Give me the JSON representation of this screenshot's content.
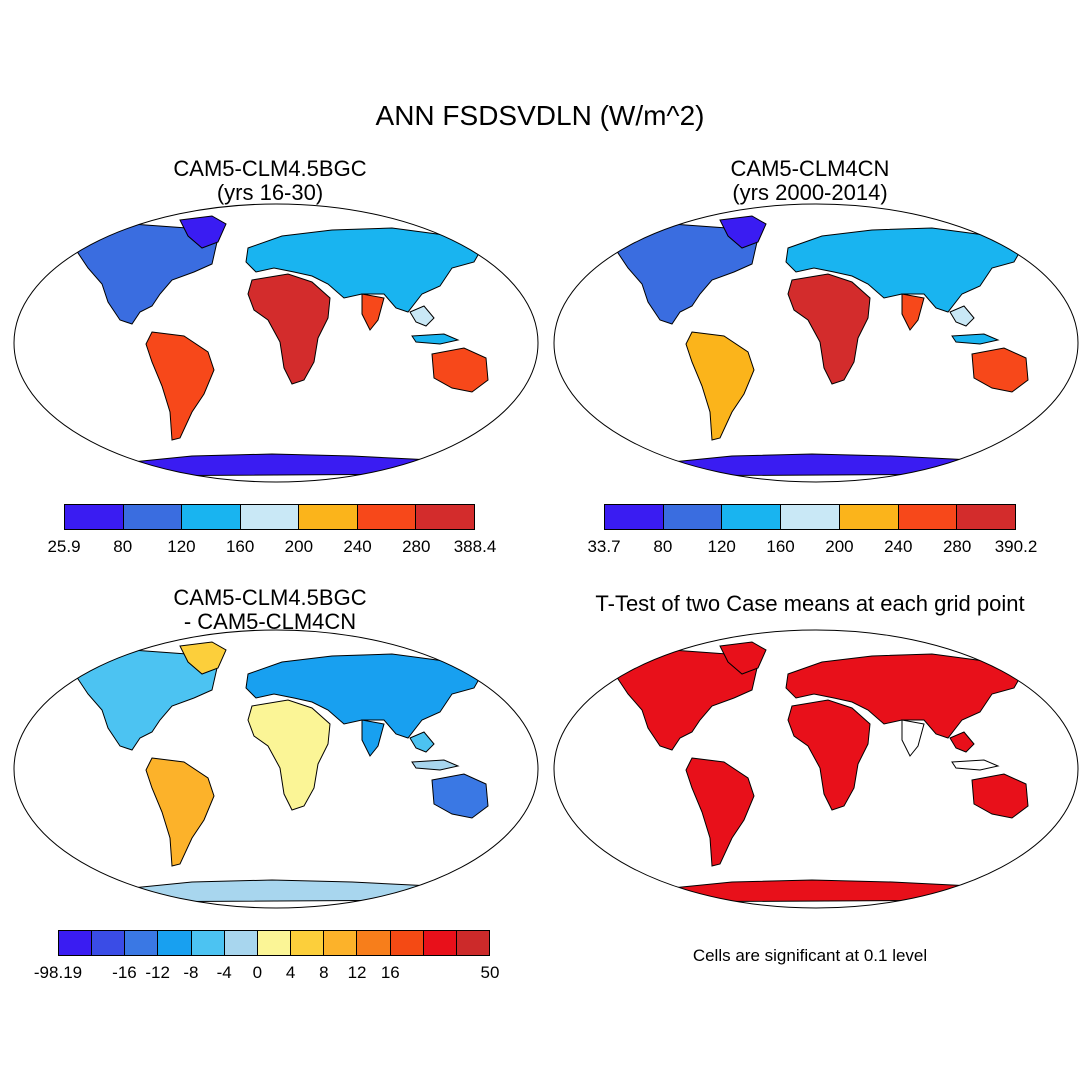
{
  "figure": {
    "title": "ANN FSDSVDLN (W/m^2)",
    "panels": [
      {
        "title_line1": "CAM5-CLM4.5BGC",
        "title_line2": "(yrs 16-30)",
        "colorbar_ticks": [
          "25.9",
          "80",
          "120",
          "160",
          "200",
          "240",
          "280",
          "388.4"
        ],
        "colorbar_colors": [
          "#3a1cf2",
          "#3a6de0",
          "#19b4f0",
          "#c9e8f6",
          "#fbb41b",
          "#f7481a",
          "#d32c2c"
        ]
      },
      {
        "title_line1": "CAM5-CLM4CN",
        "title_line2": "(yrs 2000-2014)",
        "colorbar_ticks": [
          "33.7",
          "80",
          "120",
          "160",
          "200",
          "240",
          "280",
          "390.2"
        ],
        "colorbar_colors": [
          "#3a1cf2",
          "#3a6de0",
          "#19b4f0",
          "#c9e8f6",
          "#fbb41b",
          "#f7481a",
          "#d32c2c"
        ]
      },
      {
        "title_line1": "CAM5-CLM4.5BGC",
        "title_line2": "- CAM5-CLM4CN",
        "colorbar_ticks": [
          "-98.19",
          "-16",
          "-12",
          "-8",
          "-4",
          "0",
          "4",
          "8",
          "12",
          "16",
          "50"
        ],
        "colorbar_colors": [
          "#3a1cf2",
          "#3a4ce6",
          "#3a78e4",
          "#18a0f0",
          "#4cc3f2",
          "#a8d6ee",
          "#fbf596",
          "#fccf3b",
          "#fcb22a",
          "#f77e1b",
          "#f44a14",
          "#e8101a",
          "#cc2a2a"
        ]
      },
      {
        "title_line1": "T-Test of two Case means at each grid point",
        "note": "Cells are significant at 0.1 level"
      }
    ]
  }
}
